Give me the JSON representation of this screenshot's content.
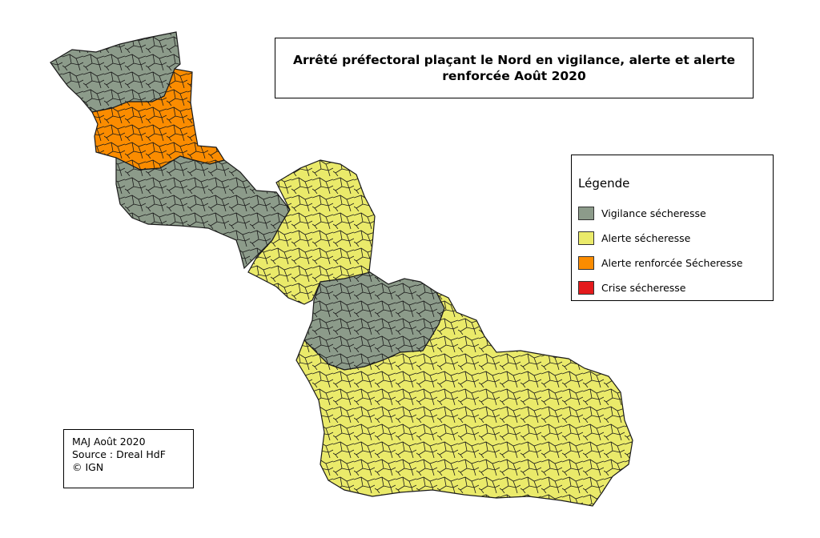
{
  "title": "Arrêté préfectoral plaçant le Nord en vigilance, alerte et alerte renforcée Août 2020",
  "legend": {
    "title": "Légende",
    "items": [
      {
        "label": "Vigilance sécheresse",
        "color": "#8c9b8a"
      },
      {
        "label": "Alerte sécheresse",
        "color": "#eaea6a"
      },
      {
        "label": "Alerte renforcée Sécheresse",
        "color": "#fb8c00"
      },
      {
        "label": "Crise sécheresse",
        "color": "#e41a1c"
      }
    ]
  },
  "info": {
    "update": "MAJ Août 2020",
    "source": "Source : Dreal HdF",
    "copyright": "© IGN"
  },
  "map": {
    "border_color": "#1a1a1a",
    "zones": [
      {
        "name": "vigilance-flandre",
        "level": "vigilance"
      },
      {
        "name": "alerte-renforcee-lille",
        "level": "alerte-renforcee"
      },
      {
        "name": "vigilance-sud-lille",
        "level": "vigilance"
      },
      {
        "name": "alerte-douaisis",
        "level": "alerte"
      },
      {
        "name": "vigilance-valenciennes",
        "level": "vigilance"
      },
      {
        "name": "alerte-cambresis-avesnois",
        "level": "alerte"
      }
    ]
  }
}
